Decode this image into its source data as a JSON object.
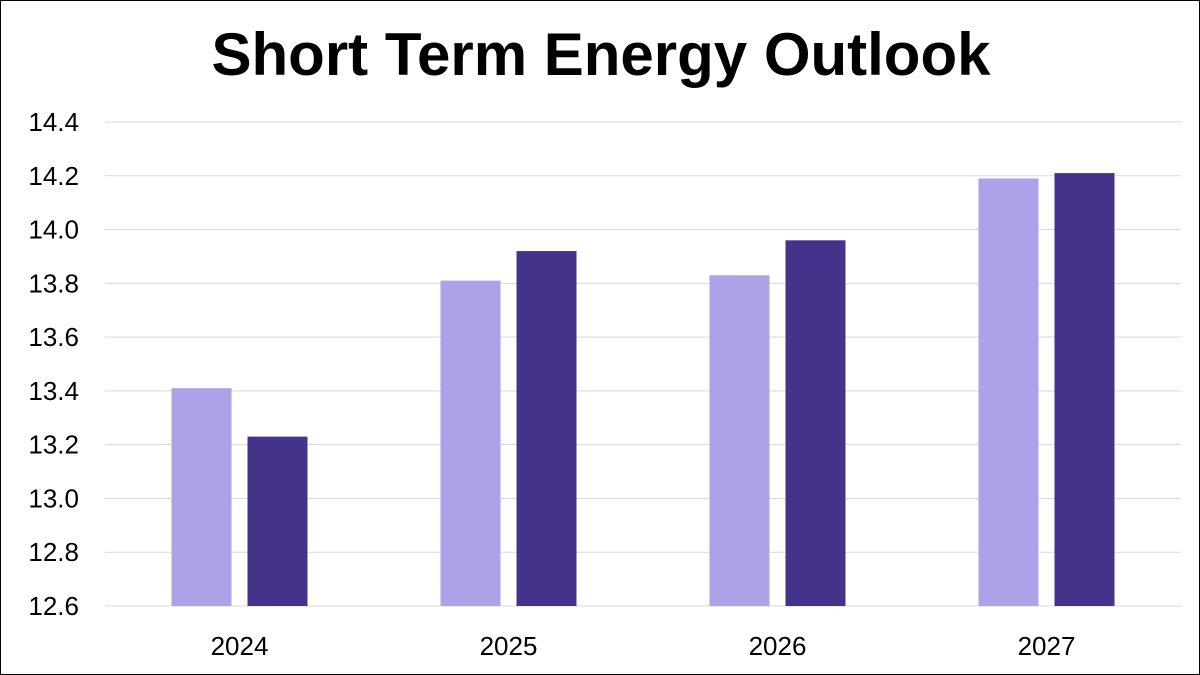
{
  "chart_data": {
    "type": "bar",
    "title": "Short Term Energy Outlook",
    "xlabel": "",
    "ylabel": "",
    "categories": [
      "2024",
      "2025",
      "2026",
      "2027"
    ],
    "series": [
      {
        "color": "#ada2e8",
        "values": [
          13.41,
          13.81,
          13.83,
          14.19
        ]
      },
      {
        "color": "#45338b",
        "values": [
          13.23,
          13.92,
          13.96,
          14.21
        ]
      }
    ],
    "ylim": [
      12.6,
      14.4
    ],
    "yticks": [
      "12.6",
      "12.8",
      "13.0",
      "13.2",
      "13.4",
      "13.6",
      "13.8",
      "14.0",
      "14.2",
      "14.4"
    ],
    "grid": true,
    "legend": "none",
    "colors": {
      "grid": "#d9d9d9",
      "axis": "#d9d9d9",
      "text": "#000000"
    }
  }
}
